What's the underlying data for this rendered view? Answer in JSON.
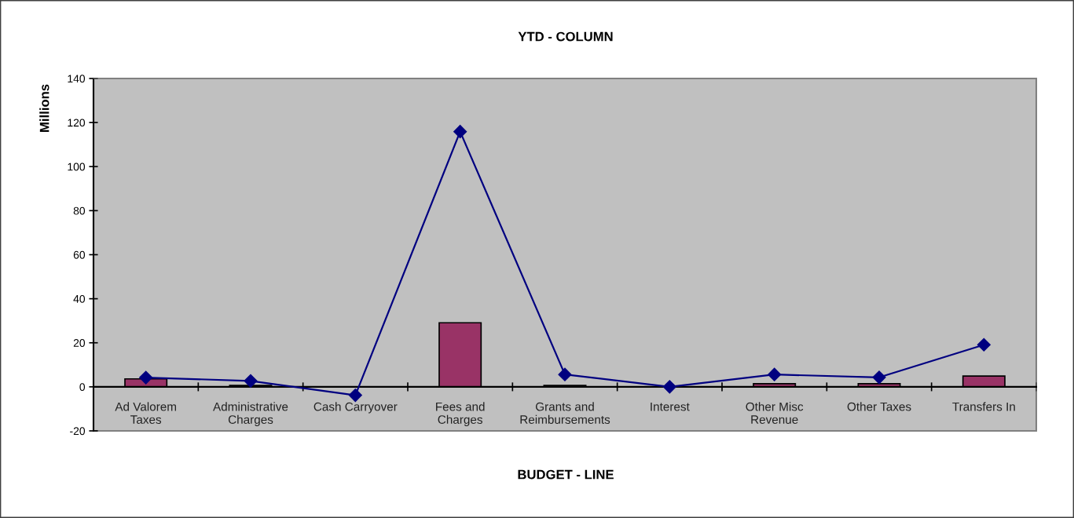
{
  "chart_data": {
    "type": "bar",
    "title": "YTD - COLUMN",
    "xlabel": "BUDGET - LINE",
    "ylabel": "Millions",
    "categories": [
      "Ad Valorem Taxes",
      "Administrative Charges",
      "Cash Carryover",
      "Fees and Charges",
      "Grants and Reimbursements",
      "Interest",
      "Other Misc Revenue",
      "Other Taxes",
      "Transfers In"
    ],
    "series": [
      {
        "color": "#993366",
        "values": [
          3.6,
          0.6,
          null,
          29.1,
          0.6,
          null,
          1.4,
          1.4,
          4.9
        ]
      },
      {
        "type": "line",
        "color": "#000080",
        "values": [
          4.2,
          2.7,
          -3.8,
          115.9,
          5.6,
          0,
          5.6,
          4.3,
          19.1
        ]
      }
    ],
    "marker": "diamond",
    "line_style": "solid",
    "ylim": [
      -20,
      140
    ],
    "yticks": [
      -20,
      0,
      20,
      40,
      60,
      80,
      100,
      120,
      140
    ]
  }
}
